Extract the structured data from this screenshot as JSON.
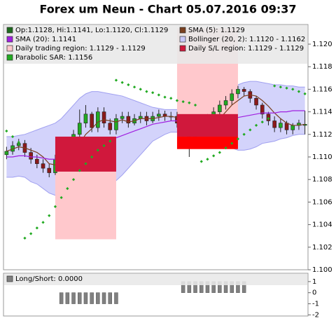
{
  "chart_data": [
    {
      "type": "candlestick",
      "title": "Forex um Neun - Chart 05.07.2016 09:37",
      "ylim": [
        1.1,
        1.12174
      ],
      "yticks": [
        {
          "value": 1.1,
          "label": "1.100"
        },
        1.102,
        1.104,
        1.106,
        1.108,
        {
          "value": 1.11,
          "label": "1.110"
        },
        1.112,
        1.114,
        1.116,
        1.118,
        {
          "value": 1.12,
          "label": "1.120"
        }
      ],
      "series": [
        {
          "name": "Op:1.1128, Hi:1.1141, Lo:1.1120, Cl:1.1129",
          "type": "candlestick",
          "color": "#1e6b1e",
          "up_color": "#22aa22",
          "down_color": "#8b1a1a",
          "open": [
            1.1102,
            1.1105,
            1.111,
            1.1112,
            1.1104,
            1.1098,
            1.1094,
            1.109,
            1.1086,
            1.1098,
            1.1102,
            1.1112,
            1.112,
            1.113,
            1.1138,
            1.1126,
            1.114,
            1.113,
            1.1124,
            1.1134,
            1.1136,
            1.113,
            1.1134,
            1.1136,
            1.1132,
            1.1136,
            1.1138,
            1.1136,
            1.1136,
            1.113,
            1.112,
            1.1118,
            1.1128,
            1.1122,
            1.1134,
            1.114,
            1.1146,
            1.115,
            1.1156,
            1.116,
            1.1158,
            1.1152,
            1.1146,
            1.1138,
            1.1132,
            1.1126,
            1.113,
            1.1124,
            1.1128,
            1.1128
          ],
          "high": [
            1.1109,
            1.1114,
            1.1116,
            1.1115,
            1.1108,
            1.1102,
            1.1098,
            1.1094,
            1.1102,
            1.1106,
            1.1116,
            1.1124,
            1.1142,
            1.1146,
            1.114,
            1.1144,
            1.1144,
            1.1134,
            1.1138,
            1.114,
            1.114,
            1.1138,
            1.114,
            1.114,
            1.114,
            1.1142,
            1.1141,
            1.114,
            1.114,
            1.1134,
            1.1124,
            1.1132,
            1.1132,
            1.1138,
            1.1144,
            1.115,
            1.1154,
            1.116,
            1.1163,
            1.1162,
            1.116,
            1.1154,
            1.1148,
            1.114,
            1.1136,
            1.1134,
            1.1132,
            1.113,
            1.1133,
            1.1141
          ],
          "low": [
            1.1098,
            1.1102,
            1.1106,
            1.11,
            1.1094,
            1.109,
            1.1086,
            1.1082,
            1.1084,
            1.1094,
            1.11,
            1.1108,
            1.1116,
            1.1126,
            1.1122,
            1.1122,
            1.1126,
            1.112,
            1.112,
            1.113,
            1.1126,
            1.1128,
            1.113,
            1.1128,
            1.113,
            1.1132,
            1.1132,
            1.1132,
            1.1126,
            1.1114,
            1.11,
            1.1114,
            1.1118,
            1.112,
            1.113,
            1.1136,
            1.1142,
            1.1146,
            1.1152,
            1.1154,
            1.1148,
            1.1142,
            1.1134,
            1.1128,
            1.1122,
            1.1122,
            1.112,
            1.112,
            1.1124,
            1.112
          ],
          "close": [
            1.1105,
            1.111,
            1.1112,
            1.1104,
            1.1098,
            1.1094,
            1.109,
            1.1086,
            1.1098,
            1.1102,
            1.1112,
            1.112,
            1.113,
            1.1138,
            1.1126,
            1.114,
            1.113,
            1.1124,
            1.1134,
            1.1136,
            1.113,
            1.1134,
            1.1136,
            1.1132,
            1.1136,
            1.1138,
            1.1136,
            1.1136,
            1.113,
            1.112,
            1.1118,
            1.1128,
            1.1122,
            1.1134,
            1.114,
            1.1146,
            1.115,
            1.1156,
            1.116,
            1.1158,
            1.1152,
            1.1146,
            1.1138,
            1.1132,
            1.1126,
            1.113,
            1.1124,
            1.1128,
            1.113,
            1.1129
          ]
        },
        {
          "name": "SMA (5): 1.1129",
          "type": "line",
          "color": "#7a4020",
          "values": [
            1.1105,
            1.1107,
            1.1109,
            1.1108,
            1.1106,
            1.1104,
            1.11,
            1.1094,
            1.1093,
            1.1094,
            1.1098,
            1.1104,
            1.1112,
            1.112,
            1.1125,
            1.1131,
            1.1133,
            1.1132,
            1.1131,
            1.1133,
            1.1131,
            1.1132,
            1.1134,
            1.1134,
            1.1134,
            1.1135,
            1.1136,
            1.1136,
            1.1135,
            1.1132,
            1.1128,
            1.1126,
            1.1124,
            1.1124,
            1.1128,
            1.1134,
            1.114,
            1.1146,
            1.115,
            1.1154,
            1.1155,
            1.1154,
            1.115,
            1.1145,
            1.1139,
            1.1134,
            1.113,
            1.1128,
            1.1128,
            1.1129
          ]
        },
        {
          "name": "SMA (20): 1.1141",
          "type": "line",
          "color": "#a020e0",
          "values": [
            1.11,
            1.11,
            1.1101,
            1.1101,
            1.11,
            1.11,
            1.1099,
            1.1098,
            1.1098,
            1.1098,
            1.1099,
            1.1101,
            1.1103,
            1.1106,
            1.1108,
            1.1111,
            1.1113,
            1.1115,
            1.1117,
            1.1119,
            1.1121,
            1.1123,
            1.1125,
            1.1127,
            1.1129,
            1.113,
            1.1131,
            1.1132,
            1.1132,
            1.1131,
            1.113,
            1.113,
            1.113,
            1.113,
            1.1131,
            1.1132,
            1.1133,
            1.1134,
            1.1135,
            1.1136,
            1.1137,
            1.1138,
            1.1139,
            1.1139,
            1.1139,
            1.114,
            1.114,
            1.1141,
            1.1141,
            1.1141
          ]
        },
        {
          "name": "Bollinger (20, 2): 1.1120 - 1.1162",
          "type": "band",
          "color": "#c8c8fa",
          "upper": [
            1.1118,
            1.1118,
            1.1119,
            1.112,
            1.1122,
            1.1124,
            1.1126,
            1.1128,
            1.113,
            1.1134,
            1.114,
            1.1146,
            1.1152,
            1.1156,
            1.1158,
            1.1158,
            1.1157,
            1.1156,
            1.1155,
            1.1154,
            1.1152,
            1.115,
            1.1148,
            1.1146,
            1.1144,
            1.1143,
            1.1142,
            1.1142,
            1.1142,
            1.1142,
            1.1143,
            1.1143,
            1.1143,
            1.1144,
            1.1146,
            1.115,
            1.1154,
            1.116,
            1.1164,
            1.1166,
            1.1167,
            1.1167,
            1.1166,
            1.1165,
            1.1164,
            1.1164,
            1.1163,
            1.1163,
            1.1162,
            1.1162
          ],
          "lower": [
            1.1082,
            1.1082,
            1.1083,
            1.1082,
            1.1078,
            1.1076,
            1.1072,
            1.1068,
            1.1066,
            1.1062,
            1.1058,
            1.1056,
            1.1054,
            1.1056,
            1.1058,
            1.1064,
            1.1069,
            1.1074,
            1.1079,
            1.1084,
            1.109,
            1.1096,
            1.1102,
            1.1108,
            1.1114,
            1.1117,
            1.112,
            1.1122,
            1.1122,
            1.112,
            1.1117,
            1.1117,
            1.1117,
            1.1116,
            1.1116,
            1.1114,
            1.1112,
            1.1108,
            1.1106,
            1.1106,
            1.1107,
            1.1109,
            1.1112,
            1.1113,
            1.1114,
            1.1116,
            1.1117,
            1.1119,
            1.112,
            1.112
          ]
        },
        {
          "name": "Daily trading region: 1.1129 - 1.1129",
          "type": "region",
          "color": "#ffc8cc",
          "regions": [
            {
              "start": 8,
              "end": 18,
              "low": 1.1027,
              "high": 1.1118,
              "color": "#ffc8cc"
            },
            {
              "start": 28,
              "end": 38,
              "low": 1.1121,
              "high": 1.1214,
              "color": "#ffc8cc"
            }
          ]
        },
        {
          "name": "Daily S/L region: 1.1129 - 1.1129",
          "type": "region",
          "color": "#d0183c",
          "regions": [
            {
              "start": 8,
              "end": 18,
              "low": 1.1087,
              "high": 1.1118,
              "color": "#d0183c"
            },
            {
              "start": 28,
              "end": 38,
              "low": 1.1118,
              "high": 1.1138,
              "color": "#d0183c"
            },
            {
              "start": 28,
              "end": 38,
              "low": 1.1107,
              "high": 1.1118,
              "color": "#ff0000"
            }
          ]
        },
        {
          "name": "Parabolic SAR: 1.1156",
          "type": "dots",
          "color": "#22aa22",
          "values": [
            1.1123,
            1.1118,
            1.1113,
            1.1028,
            1.1032,
            1.1037,
            1.1042,
            1.1048,
            1.1056,
            1.1064,
            1.1072,
            1.108,
            1.1088,
            1.1094,
            1.11,
            1.1106,
            1.111,
            1.1114,
            1.1168,
            1.1166,
            1.1164,
            1.1162,
            1.116,
            1.1158,
            1.1157,
            1.1155,
            1.1153,
            1.1152,
            1.115,
            1.1149,
            1.1148,
            1.1146,
            1.1096,
            1.1098,
            1.1101,
            1.1104,
            1.1108,
            1.1112,
            1.1116,
            1.112,
            1.1124,
            1.1128,
            1.1131,
            1.1134,
            1.1163,
            1.1162,
            1.1161,
            1.116,
            1.1158,
            1.1156
          ]
        }
      ]
    },
    {
      "type": "bar",
      "ylim": [
        -2.1,
        1.75
      ],
      "yticks": [
        1,
        0,
        -1,
        -2
      ],
      "series": [
        {
          "name": "Long/Short: 0.0000",
          "color": "#808080",
          "values": [
            0,
            0,
            0,
            0,
            0,
            0,
            0,
            0,
            0,
            -1,
            -1,
            -1,
            -1,
            -1,
            -1,
            -1,
            -1,
            -1,
            -1,
            0,
            0,
            0,
            0,
            0,
            0,
            0,
            0,
            0,
            0,
            1,
            1,
            1,
            1,
            1,
            1,
            1,
            1,
            1,
            1,
            1,
            0,
            0,
            0,
            0,
            0,
            0,
            0,
            0,
            0,
            0
          ]
        }
      ]
    }
  ]
}
